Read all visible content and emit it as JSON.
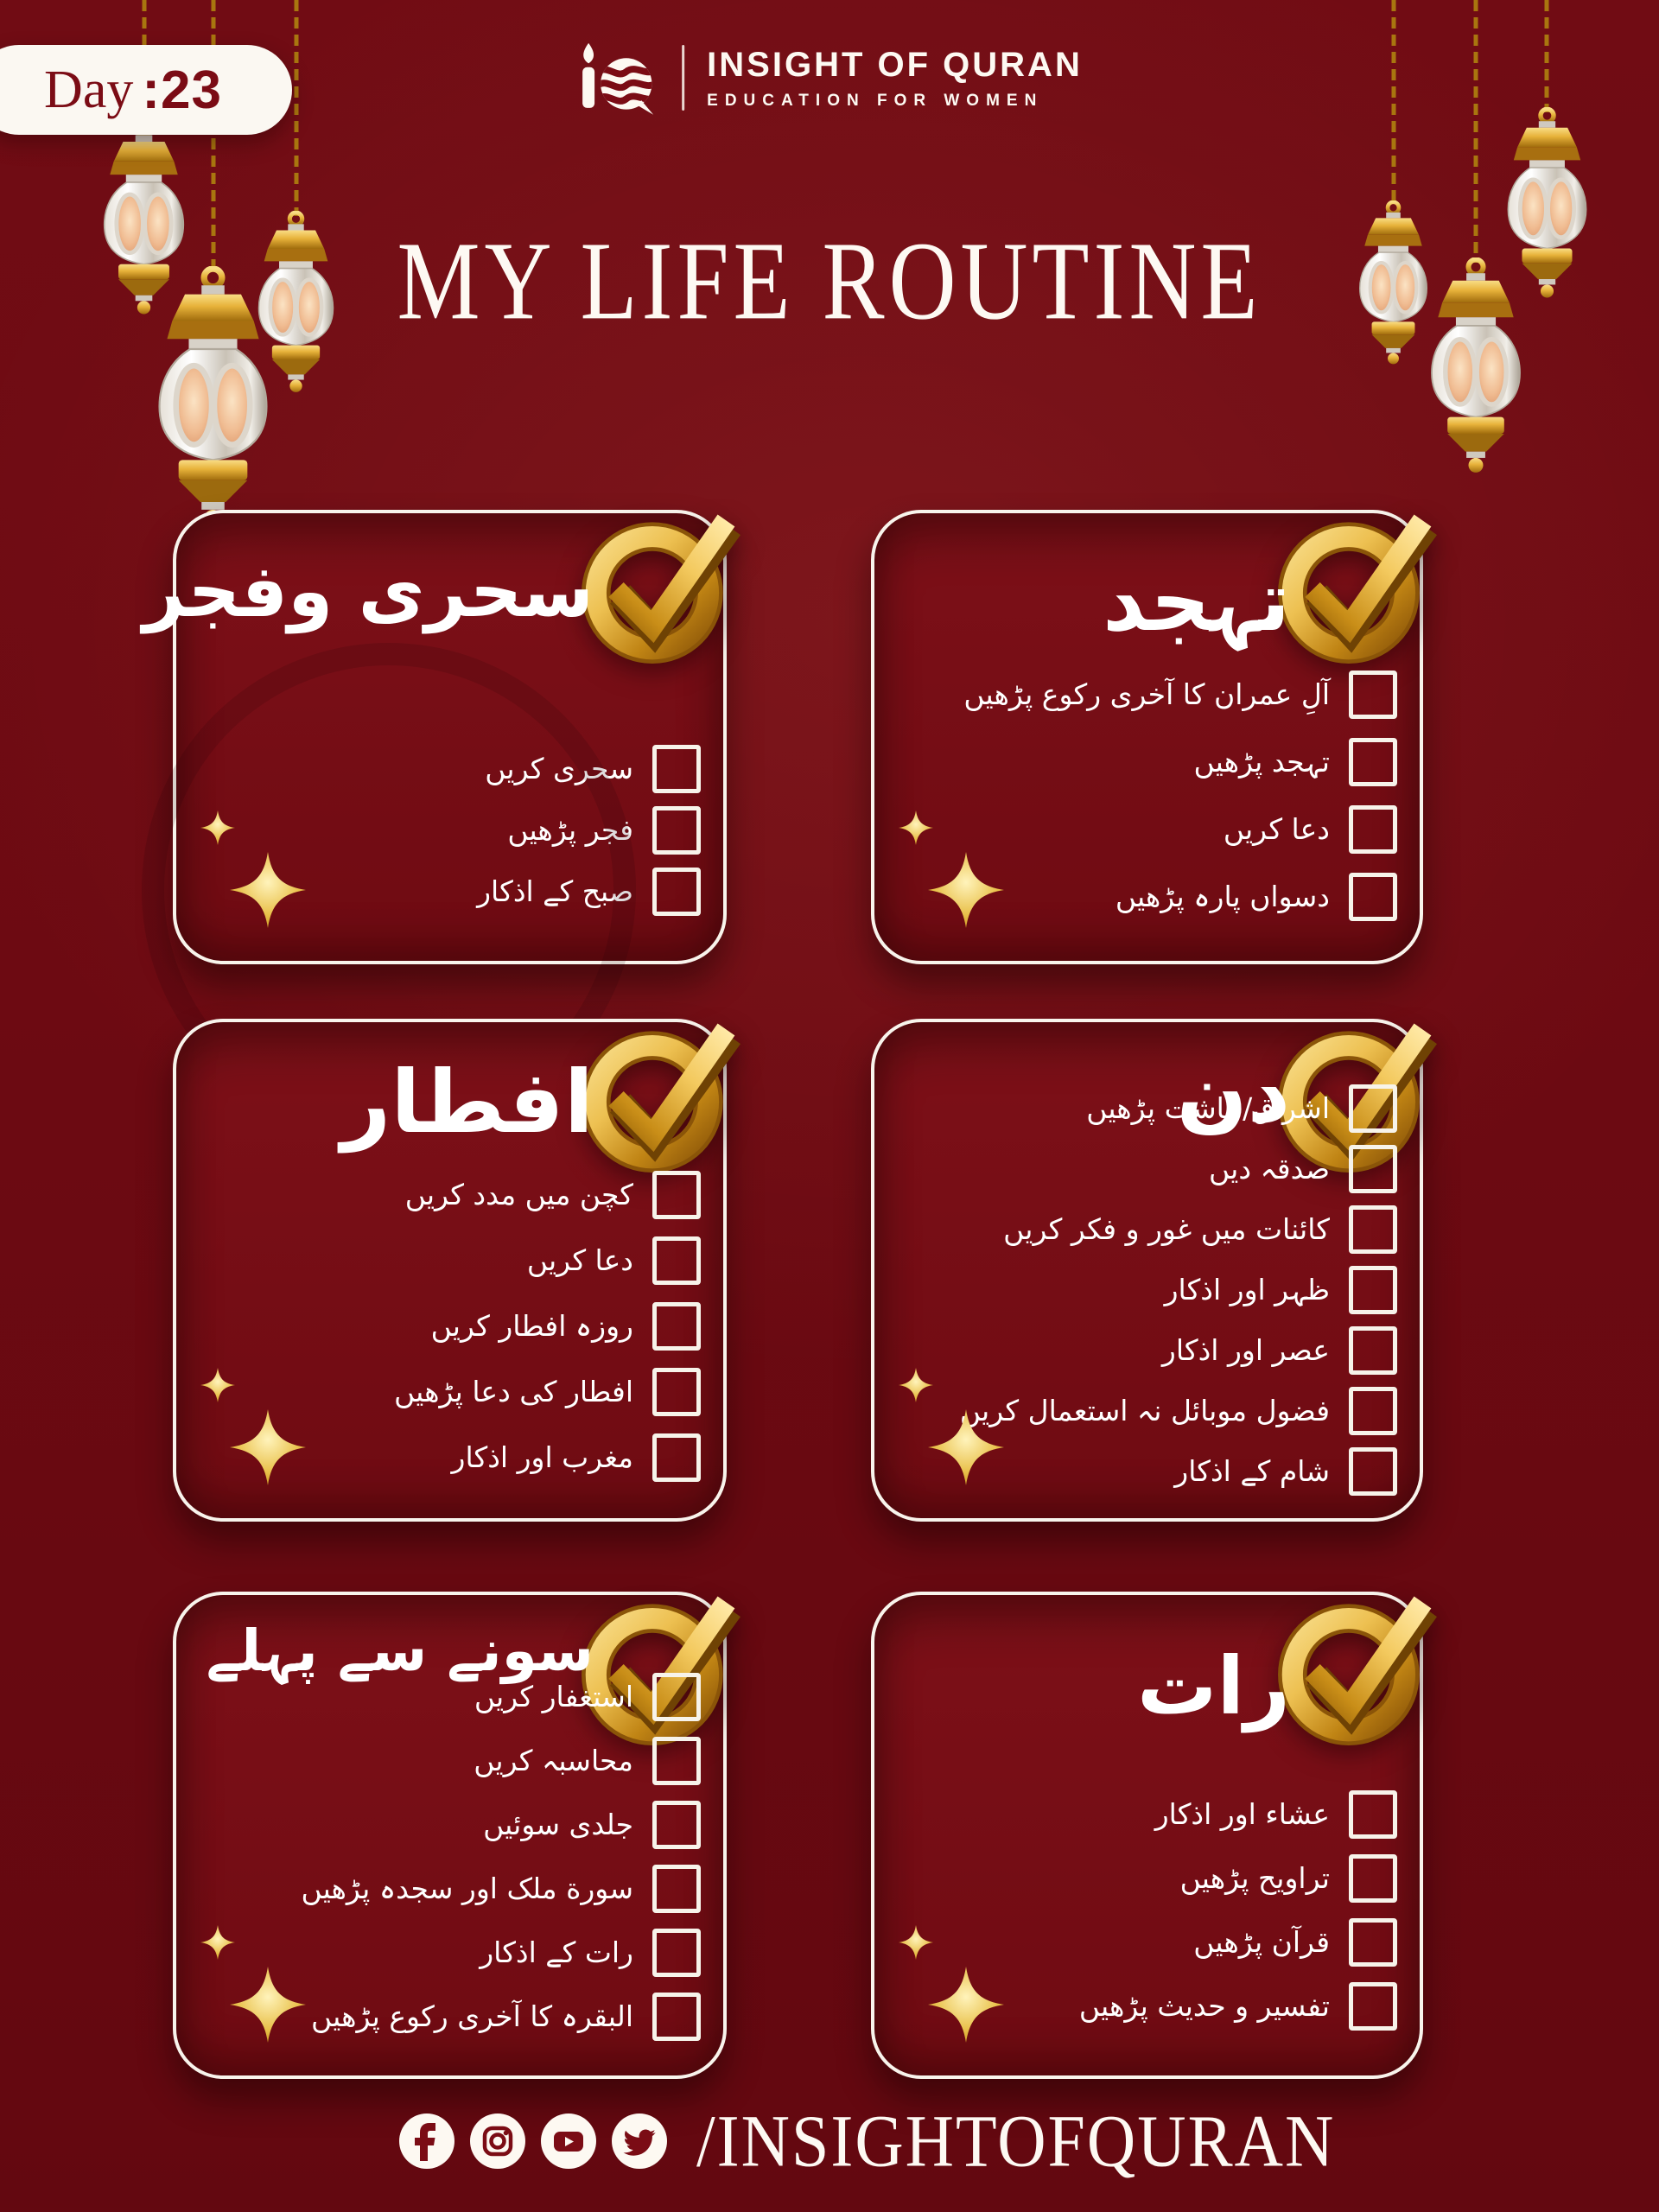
{
  "header": {
    "day_label": "Day",
    "day_value": ":23",
    "brand_name": "INSIGHT OF QURAN",
    "brand_tagline": "EDUCATION FOR WOMEN",
    "title": "MY LIFE ROUTINE"
  },
  "colors": {
    "background": "#6d0a12",
    "card_background": "#750d15",
    "card_border": "#f8f4ec",
    "text_white": "#ffffff",
    "gold": "#e2b13c",
    "gold_dark": "#8a5408",
    "day_badge_text": "#7b0c15",
    "lantern_glow": "#f0bc92"
  },
  "cards": [
    {
      "id": "sehri-fajr",
      "title": "سحری وفجر",
      "items": [
        {
          "label": "سحری کریں",
          "checked": false
        },
        {
          "label": "فجر پڑھیں",
          "checked": false
        },
        {
          "label": "صبح کے اذکار",
          "checked": false
        }
      ]
    },
    {
      "id": "tahajjud",
      "title": "تہجد",
      "items": [
        {
          "label": "آلِ عمران کا آخری رکوع پڑھیں",
          "checked": false
        },
        {
          "label": "تہجد پڑھیں",
          "checked": false
        },
        {
          "label": "دعا کریں",
          "checked": false
        },
        {
          "label": "دسواں پارہ پڑھیں",
          "checked": false
        }
      ]
    },
    {
      "id": "iftar",
      "title": "افطار",
      "items": [
        {
          "label": "کچن میں مدد کریں",
          "checked": false
        },
        {
          "label": "دعا کریں",
          "checked": false
        },
        {
          "label": "روزہ افطار کریں",
          "checked": false
        },
        {
          "label": "افطار کی دعا پڑھیں",
          "checked": false
        },
        {
          "label": "مغرب اور اذکار",
          "checked": false
        }
      ]
    },
    {
      "id": "din",
      "title": "دن",
      "items": [
        {
          "label": "اشراق/چاشت پڑھیں",
          "checked": false
        },
        {
          "label": "صدقہ دیں",
          "checked": false
        },
        {
          "label": "کائنات میں غور و فکر کریں",
          "checked": false
        },
        {
          "label": "ظہر اور اذکار",
          "checked": false
        },
        {
          "label": "عصر اور اذکار",
          "checked": false
        },
        {
          "label": "فضول موبائل نہ استعمال کریں",
          "checked": false
        },
        {
          "label": "شام کے اذکار",
          "checked": false
        }
      ]
    },
    {
      "id": "sonay-se-pehle",
      "title": "سونے سے پہلے",
      "items": [
        {
          "label": "استغفار کریں",
          "checked": false
        },
        {
          "label": "محاسبہ کریں",
          "checked": false
        },
        {
          "label": "جلدی سوئیں",
          "checked": false
        },
        {
          "label": "سورة ملک اور سجدہ پڑھیں",
          "checked": false
        },
        {
          "label": "رات کے اذکار",
          "checked": false
        },
        {
          "label": "البقرہ کا آخری رکوع پڑھیں",
          "checked": false
        }
      ]
    },
    {
      "id": "raat",
      "title": "رات",
      "items": [
        {
          "label": "عشاء اور اذکار",
          "checked": false
        },
        {
          "label": "تراویح پڑھیں",
          "checked": false
        },
        {
          "label": "قرآن پڑھیں",
          "checked": false
        },
        {
          "label": "تفسیر و حدیث پڑھیں",
          "checked": false
        }
      ]
    }
  ],
  "footer": {
    "handle": "/INSIGHTOFQURAN",
    "social_icons": [
      "facebook-icon",
      "instagram-icon",
      "youtube-icon",
      "twitter-icon"
    ]
  }
}
